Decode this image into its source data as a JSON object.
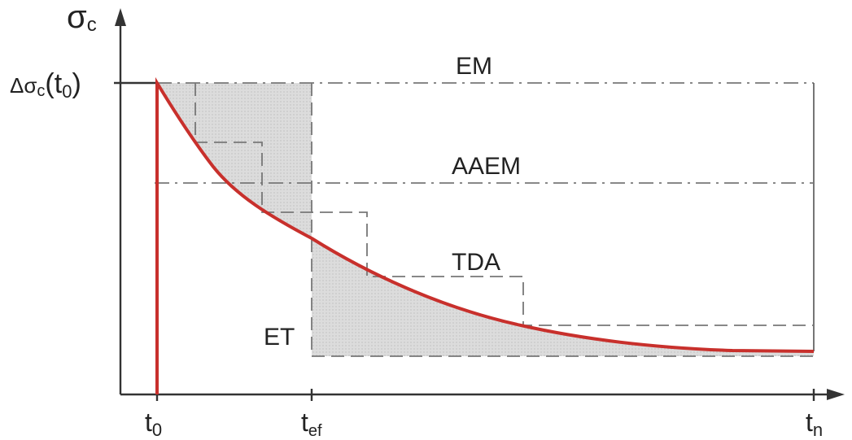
{
  "axes": {
    "y_label_main": "σ",
    "y_label_sub": "c",
    "y_tick_delta": "Δσ",
    "y_tick_sub": "c",
    "y_tick_arg": "(t",
    "y_tick_arg_sub": "0",
    "y_tick_close": ")",
    "x_tick_t0_main": "t",
    "x_tick_t0_sub": "0",
    "x_tick_tef_main": "t",
    "x_tick_tef_sub": "ef",
    "x_tick_tn_main": "t",
    "x_tick_tn_sub": "n"
  },
  "method_labels": {
    "em": "EM",
    "aaem": "AAEM",
    "tda": "TDA",
    "et": "ET"
  },
  "colors": {
    "curve": "#c8302c",
    "shading": "#d9d9d9",
    "lines": "#777777"
  }
}
